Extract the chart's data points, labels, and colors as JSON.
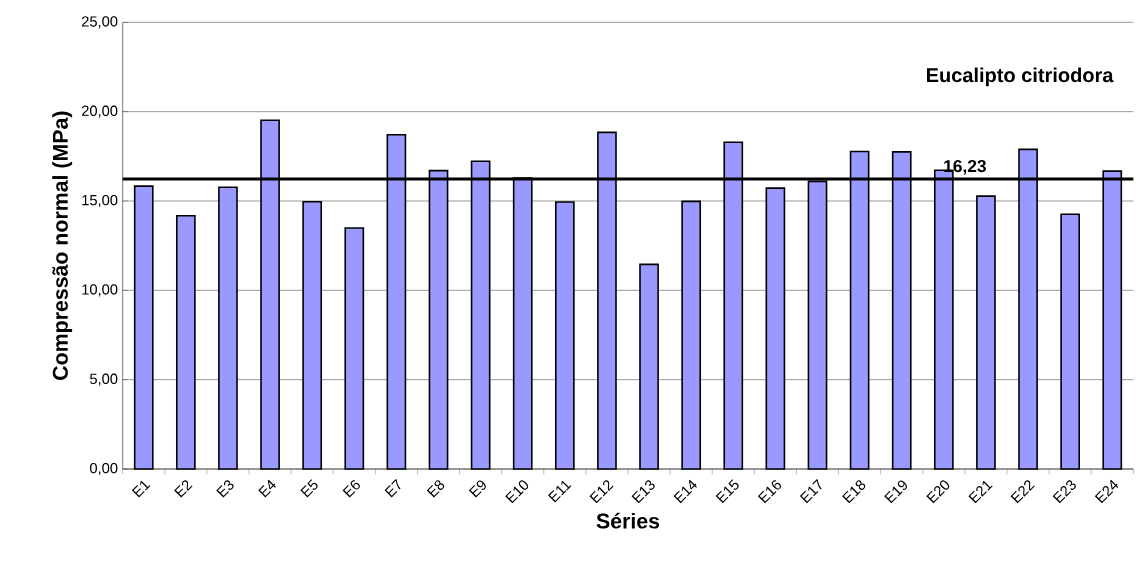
{
  "chart_data": {
    "type": "bar",
    "title": "Eucalipto citriodora",
    "xlabel": "Séries",
    "ylabel": "Compressão normal (MPa)",
    "categories": [
      "E1",
      "E2",
      "E3",
      "E4",
      "E5",
      "E6",
      "E7",
      "E8",
      "E9",
      "E10",
      "E11",
      "E12",
      "E13",
      "E14",
      "E15",
      "E16",
      "E17",
      "E18",
      "E19",
      "E20",
      "E21",
      "E22",
      "E23",
      "E24"
    ],
    "values": [
      15.83,
      14.17,
      15.77,
      19.52,
      14.96,
      13.49,
      18.71,
      16.7,
      17.22,
      16.29,
      14.94,
      18.84,
      11.45,
      14.98,
      18.29,
      15.72,
      16.1,
      17.77,
      17.75,
      16.72,
      15.27,
      17.89,
      14.26,
      16.67
    ],
    "color": "#9999ff",
    "ylim": [
      0,
      25
    ],
    "yticks": [
      {
        "value": 0,
        "label": "0,00"
      },
      {
        "value": 5,
        "label": "5,00"
      },
      {
        "value": 10,
        "label": "10,00"
      },
      {
        "value": 15,
        "label": "15,00"
      },
      {
        "value": 20,
        "label": "20,00"
      },
      {
        "value": 25,
        "label": "25,00"
      }
    ],
    "grid": "y",
    "ref_lines": [
      {
        "axis": "y",
        "value": 16.23,
        "label": "16,23",
        "color": "#000000"
      }
    ]
  }
}
